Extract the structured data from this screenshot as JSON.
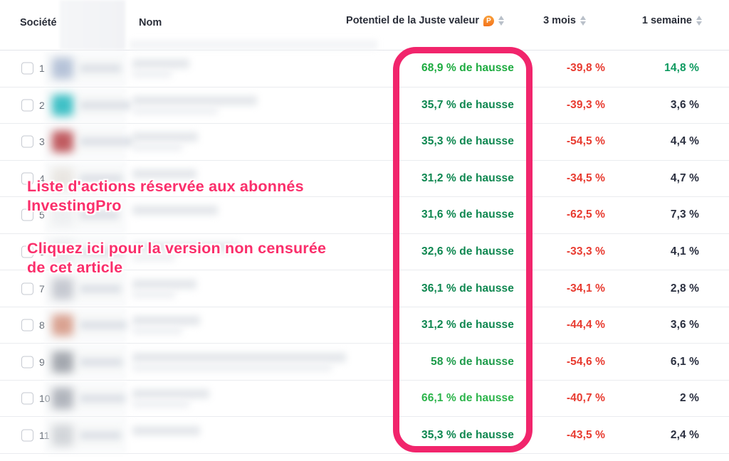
{
  "header": {
    "societe_label": "Société",
    "nom_label": "Nom",
    "fair_value_label": "Potentiel de la Juste valeur",
    "pro_badge": "P",
    "three_months_label": "3 mois",
    "one_week_label": "1 semaine"
  },
  "overlay": {
    "subscribers_line1": "Liste d'actions réservée aux abonnés",
    "subscribers_line2": "InvestingPro",
    "link_line1": "Cliquez ici pour la version non censurée",
    "link_line2": "de cet article"
  },
  "colors": {
    "annotation_pink": "#f1256c",
    "overlay_text_pink": "#fa2f6b",
    "green_bright": "#1cab3f",
    "green_dark": "#0e8750",
    "red_negative": "#e83b30",
    "week_green": "#0e9a60",
    "week_dark": "#2b3040",
    "pro_icon_orange": "#f4731c",
    "header_text": "#2a2e39"
  },
  "chart_data": {
    "type": "table",
    "title": "Potentiel de la Juste valeur (liste censurée InvestingPro)",
    "columns": [
      "Société",
      "Nom",
      "Potentiel de la Juste valeur",
      "3 mois",
      "1 semaine"
    ],
    "fair_value_upside_pct": [
      68.9,
      35.7,
      35.3,
      31.2,
      31.6,
      32.6,
      36.1,
      31.2,
      58,
      66.1,
      35.3
    ],
    "three_months_pct": [
      -39.8,
      -39.3,
      -54.5,
      -34.5,
      -62.5,
      -33.3,
      -34.1,
      -44.4,
      -54.6,
      -40.7,
      -43.5
    ],
    "one_week_pct": [
      14.8,
      3.6,
      4.4,
      4.7,
      7.3,
      4.1,
      2.8,
      3.6,
      6.1,
      2,
      2.4
    ]
  },
  "rows": [
    {
      "num": "1",
      "fair_value": "68,9 % de hausse",
      "three_months": "-39,8 %",
      "one_week": "14,8 %",
      "fv_color": "#1cab3f",
      "week_color": "#0e9a60",
      "logo_color": "#b6c3d8",
      "tick_w": 58,
      "name_w": 80,
      "name2_w": 55
    },
    {
      "num": "2",
      "fair_value": "35,7 % de hausse",
      "three_months": "-39,3 %",
      "one_week": "3,6 %",
      "fv_color": "#0e8750",
      "week_color": "#2b3040",
      "logo_color": "#3fc0c6",
      "tick_w": 72,
      "name_w": 175,
      "name2_w": 120
    },
    {
      "num": "3",
      "fair_value": "35,3 % de hausse",
      "three_months": "-54,5 %",
      "one_week": "4,4 %",
      "fv_color": "#0e8750",
      "week_color": "#2b3040",
      "logo_color": "#c05b60",
      "tick_w": 76,
      "name_w": 92,
      "name2_w": 70
    },
    {
      "num": "4",
      "fair_value": "31,2 % de hausse",
      "three_months": "-34,5 %",
      "one_week": "4,7 %",
      "fv_color": "#0e8750",
      "week_color": "#2b3040",
      "logo_color": "#e9e6e2",
      "tick_w": 60,
      "name_w": 90,
      "name2_w": 0
    },
    {
      "num": "5",
      "fair_value": "31,6 % de hausse",
      "three_months": "-62,5 %",
      "one_week": "7,3 %",
      "fv_color": "#0e8750",
      "week_color": "#2b3040",
      "logo_color": "#edeff1",
      "tick_w": 55,
      "name_w": 120,
      "name2_w": 0
    },
    {
      "num": "6",
      "fair_value": "32,6 % de hausse",
      "three_months": "-33,3 %",
      "one_week": "4,1 %",
      "fv_color": "#0e8750",
      "week_color": "#2b3040",
      "logo_color": "#e7e9ec",
      "tick_w": 62,
      "name_w": 150,
      "name2_w": 60
    },
    {
      "num": "7",
      "fair_value": "36,1 % de hausse",
      "three_months": "-34,1 %",
      "one_week": "2,8 %",
      "fv_color": "#0e8750",
      "week_color": "#2b3040",
      "logo_color": "#c6c9d1",
      "tick_w": 58,
      "name_w": 90,
      "name2_w": 60
    },
    {
      "num": "8",
      "fair_value": "31,2 % de hausse",
      "three_months": "-44,4 %",
      "one_week": "3,6 %",
      "fv_color": "#0e8750",
      "week_color": "#2b3040",
      "logo_color": "#d9a291",
      "tick_w": 66,
      "name_w": 95,
      "name2_w": 70
    },
    {
      "num": "9",
      "fair_value": "58 % de hausse",
      "three_months": "-54,6 %",
      "one_week": "6,1 %",
      "fv_color": "#1d9b4a",
      "week_color": "#2b3040",
      "logo_color": "#a4a8af",
      "tick_w": 60,
      "name_w": 300,
      "name2_w": 280
    },
    {
      "num": "10",
      "fair_value": "66,1 % de hausse",
      "three_months": "-40,7 %",
      "one_week": "2 %",
      "fv_color": "#2bb44a",
      "week_color": "#2b3040",
      "logo_color": "#b1b5bd",
      "tick_w": 64,
      "name_w": 108,
      "name2_w": 80
    },
    {
      "num": "11",
      "fair_value": "35,3 % de hausse",
      "three_months": "-43,5 %",
      "one_week": "2,4 %",
      "fv_color": "#0e8750",
      "week_color": "#2b3040",
      "logo_color": "#d2d5d9",
      "tick_w": 58,
      "name_w": 95,
      "name2_w": 0
    }
  ]
}
